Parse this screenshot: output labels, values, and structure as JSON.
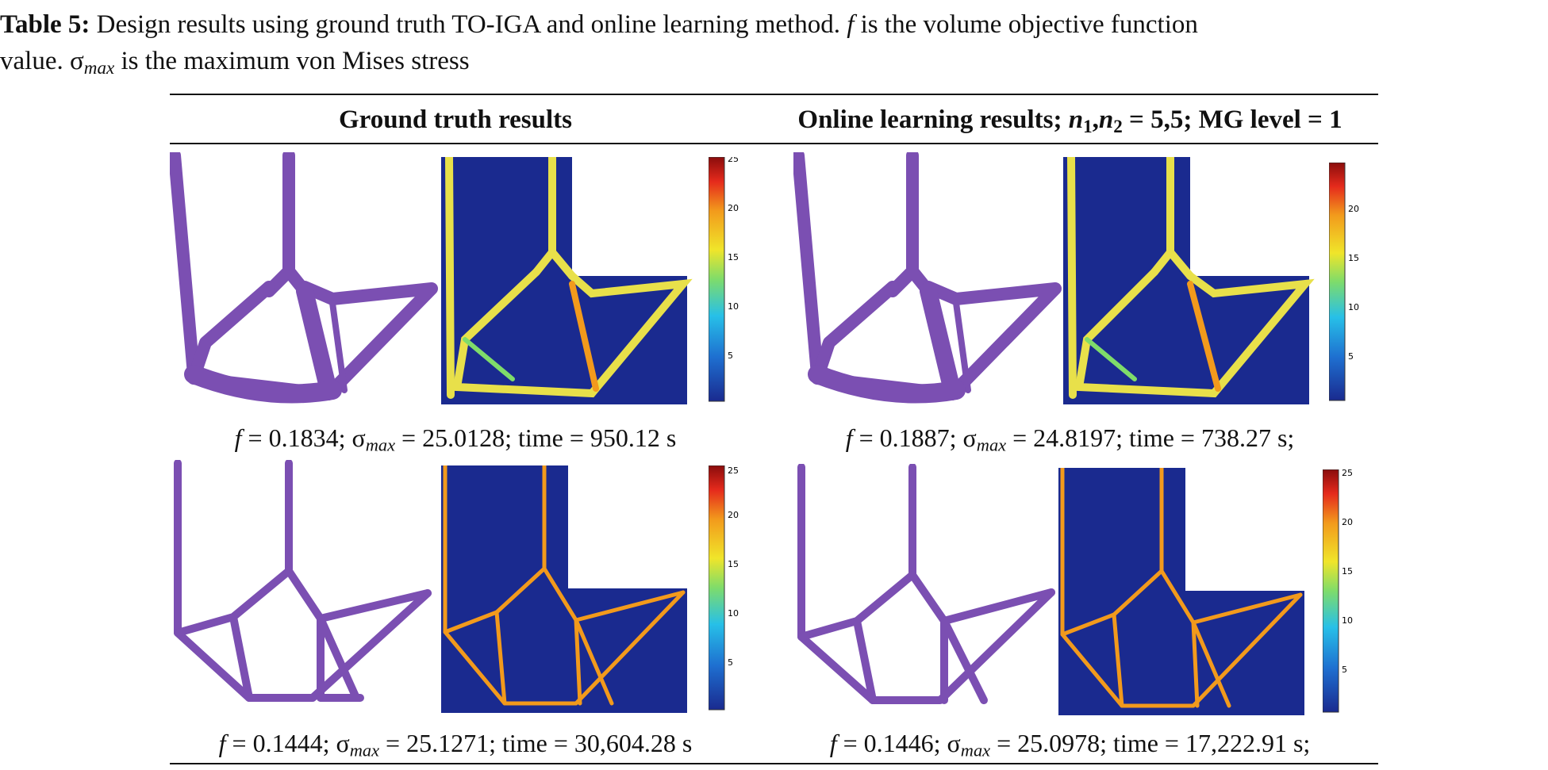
{
  "caption": {
    "label": "Table 5:",
    "line1": "Design results using ground truth TO-IGA and online learning method.",
    "f_sym": "f",
    "line1_rest": "is the volume objective function",
    "line2_start": "value. σ",
    "sub": "max",
    "line2_rest": "is the maximum von Mises stress"
  },
  "headers": {
    "left": "Ground truth results",
    "right_prefix": "Online learning results;",
    "n1": "n",
    "n1_sub": "1",
    "comma": ",",
    "n2": "n",
    "n2_sub": "2",
    "right_suffix": "= 5,5; MG level = 1"
  },
  "results": [
    {
      "f_label": "f",
      "f": "= 0.1834; σ",
      "sub": "max",
      "rest": "= 25.0128; time = 950.12 s"
    },
    {
      "f_label": "f",
      "f": "= 0.1887; σ",
      "sub": "max",
      "rest": "= 24.8197; time = 738.27 s;"
    },
    {
      "f_label": "f",
      "f": "= 0.1444; σ",
      "sub": "max",
      "rest": "= 25.1271; time = 30,604.28 s"
    },
    {
      "f_label": "f",
      "f": "= 0.1446; σ",
      "sub": "max",
      "rest": "= 25.0978; time = 17,222.91 s;"
    }
  ],
  "colorbars": [
    {
      "ticks": [
        "25",
        "20",
        "15",
        "10",
        "5"
      ]
    },
    {
      "ticks": [
        "20",
        "15",
        "10",
        "5"
      ]
    },
    {
      "ticks": [
        "25",
        "20",
        "15",
        "10",
        "5"
      ]
    },
    {
      "ticks": [
        "25",
        "20",
        "15",
        "10",
        "5"
      ]
    }
  ],
  "colors": {
    "topology": "#7b4fb2",
    "stress_low": "#1a2a8f",
    "stress_high": "#b30000"
  }
}
